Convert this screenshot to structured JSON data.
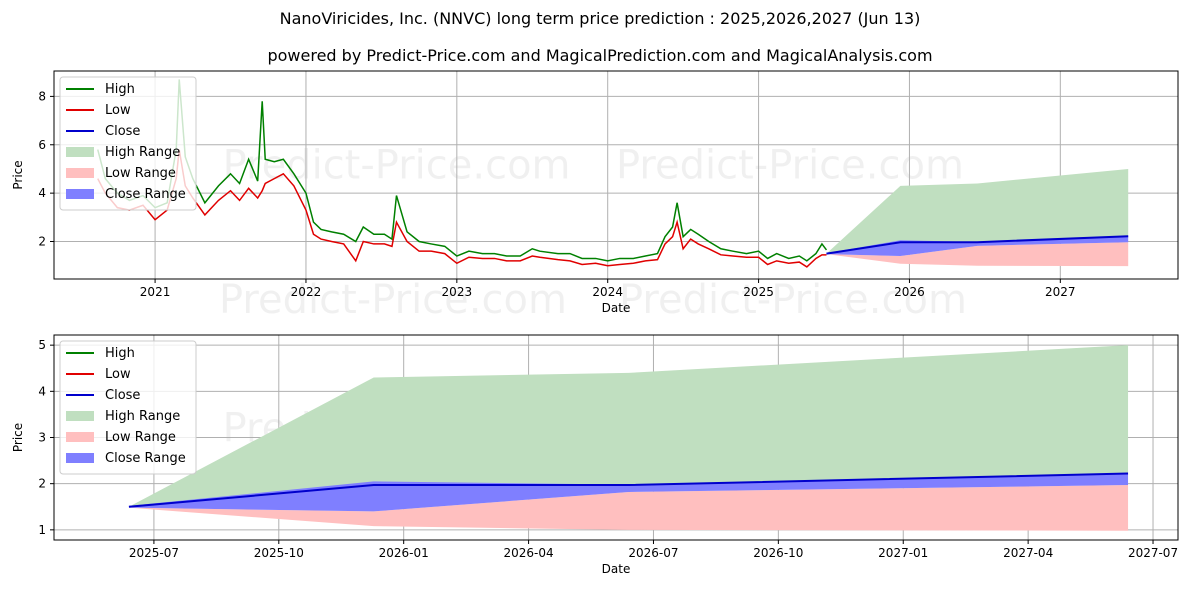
{
  "title": "NanoViricides, Inc. (NNVC) long term price prediction : 2025,2026,2027 (Jun 13)",
  "subtitle": "powered by Predict-Price.com and MagicalPrediction.com and MagicalAnalysis.com",
  "watermark": "Predict-Price.com",
  "colors": {
    "high": "#008000",
    "low": "#e00000",
    "close": "#0000cc",
    "high_range": "#c0dfc0",
    "low_range": "#ffbfbf",
    "close_range": "#7f7fff"
  },
  "chart_data": [
    {
      "type": "line",
      "title": "historical and forecast",
      "xlabel": "Date",
      "ylabel": "Price",
      "xlim": [
        2020.33,
        2027.78
      ],
      "ylim": [
        0.45,
        9.05
      ],
      "xticks": [
        {
          "v": 2021,
          "label": "2021"
        },
        {
          "v": 2022,
          "label": "2022"
        },
        {
          "v": 2023,
          "label": "2023"
        },
        {
          "v": 2024,
          "label": "2024"
        },
        {
          "v": 2025,
          "label": "2025"
        },
        {
          "v": 2026,
          "label": "2026"
        },
        {
          "v": 2027,
          "label": "2027"
        }
      ],
      "yticks": [
        {
          "v": 2,
          "label": "2"
        },
        {
          "v": 4,
          "label": "4"
        },
        {
          "v": 6,
          "label": "6"
        },
        {
          "v": 8,
          "label": "8"
        }
      ],
      "legend": [
        "High",
        "Low",
        "Close",
        "High Range",
        "Low Range",
        "Close Range"
      ],
      "legend_position": "top-left",
      "history": {
        "x": [
          2020.62,
          2020.67,
          2020.75,
          2020.83,
          2020.92,
          2021.0,
          2021.08,
          2021.14,
          2021.16,
          2021.2,
          2021.25,
          2021.33,
          2021.42,
          2021.5,
          2021.56,
          2021.62,
          2021.68,
          2021.71,
          2021.73,
          2021.79,
          2021.85,
          2021.92,
          2022.0,
          2022.05,
          2022.1,
          2022.17,
          2022.25,
          2022.33,
          2022.38,
          2022.45,
          2022.52,
          2022.57,
          2022.6,
          2022.67,
          2022.75,
          2022.83,
          2022.92,
          2023.0,
          2023.08,
          2023.17,
          2023.25,
          2023.33,
          2023.42,
          2023.5,
          2023.55,
          2023.67,
          2023.75,
          2023.83,
          2023.92,
          2024.0,
          2024.08,
          2024.17,
          2024.25,
          2024.33,
          2024.38,
          2024.43,
          2024.46,
          2024.5,
          2024.55,
          2024.6,
          2024.67,
          2024.75,
          2024.83,
          2024.92,
          2025.0,
          2025.06,
          2025.12,
          2025.2,
          2025.27,
          2025.32,
          2025.38,
          2025.42,
          2025.45
        ],
        "high": [
          5.8,
          4.6,
          4.0,
          3.7,
          3.9,
          3.4,
          3.6,
          5.8,
          8.7,
          5.5,
          4.6,
          3.6,
          4.3,
          4.8,
          4.4,
          5.4,
          4.5,
          7.8,
          5.4,
          5.3,
          5.4,
          4.8,
          4.0,
          2.8,
          2.5,
          2.4,
          2.3,
          2.0,
          2.6,
          2.3,
          2.3,
          2.1,
          3.9,
          2.4,
          2.0,
          1.9,
          1.8,
          1.4,
          1.6,
          1.5,
          1.5,
          1.4,
          1.4,
          1.7,
          1.6,
          1.5,
          1.5,
          1.3,
          1.3,
          1.2,
          1.3,
          1.3,
          1.4,
          1.5,
          2.2,
          2.6,
          3.6,
          2.2,
          2.5,
          2.3,
          2.0,
          1.7,
          1.6,
          1.5,
          1.6,
          1.3,
          1.5,
          1.3,
          1.4,
          1.2,
          1.5,
          1.9,
          1.65
        ],
        "low": [
          4.6,
          4.0,
          3.4,
          3.3,
          3.5,
          2.9,
          3.3,
          4.6,
          5.8,
          4.3,
          3.8,
          3.1,
          3.7,
          4.1,
          3.7,
          4.2,
          3.8,
          4.1,
          4.4,
          4.6,
          4.8,
          4.3,
          3.3,
          2.3,
          2.1,
          2.0,
          1.9,
          1.2,
          2.0,
          1.9,
          1.9,
          1.8,
          2.8,
          2.0,
          1.6,
          1.6,
          1.5,
          1.1,
          1.35,
          1.3,
          1.3,
          1.2,
          1.2,
          1.4,
          1.35,
          1.25,
          1.2,
          1.05,
          1.1,
          1.0,
          1.05,
          1.1,
          1.2,
          1.25,
          1.9,
          2.2,
          2.8,
          1.7,
          2.1,
          1.9,
          1.7,
          1.45,
          1.4,
          1.35,
          1.35,
          1.05,
          1.2,
          1.1,
          1.15,
          0.95,
          1.3,
          1.45,
          1.45
        ]
      }
    },
    {
      "type": "area",
      "title": "forecast detail",
      "xlabel": "Date",
      "ylabel": "Price",
      "xlim": [
        2025.3,
        2027.55
      ],
      "ylim": [
        0.78,
        5.22
      ],
      "xticks": [
        {
          "v": 2025.5,
          "label": "2025-07"
        },
        {
          "v": 2025.75,
          "label": "2025-10"
        },
        {
          "v": 2026.0,
          "label": "2026-01"
        },
        {
          "v": 2026.25,
          "label": "2026-04"
        },
        {
          "v": 2026.5,
          "label": "2026-07"
        },
        {
          "v": 2026.75,
          "label": "2026-10"
        },
        {
          "v": 2027.0,
          "label": "2027-01"
        },
        {
          "v": 2027.25,
          "label": "2027-04"
        },
        {
          "v": 2027.5,
          "label": "2027-07"
        }
      ],
      "yticks": [
        {
          "v": 1,
          "label": "1"
        },
        {
          "v": 2,
          "label": "2"
        },
        {
          "v": 3,
          "label": "3"
        },
        {
          "v": 4,
          "label": "4"
        },
        {
          "v": 5,
          "label": "5"
        }
      ],
      "legend": [
        "High",
        "Low",
        "Close",
        "High Range",
        "Low Range",
        "Close Range"
      ],
      "legend_position": "top-left",
      "forecast": {
        "x": [
          2025.45,
          2025.94,
          2026.45,
          2027.45
        ],
        "high": [
          1.5,
          4.3,
          4.4,
          5.0
        ],
        "close_upper": [
          1.52,
          2.05,
          1.98,
          2.22
        ],
        "close": [
          1.5,
          1.97,
          1.97,
          2.22
        ],
        "close_lower": [
          1.48,
          1.4,
          1.82,
          1.97
        ],
        "low": [
          1.48,
          1.08,
          1.0,
          0.98
        ]
      }
    }
  ]
}
